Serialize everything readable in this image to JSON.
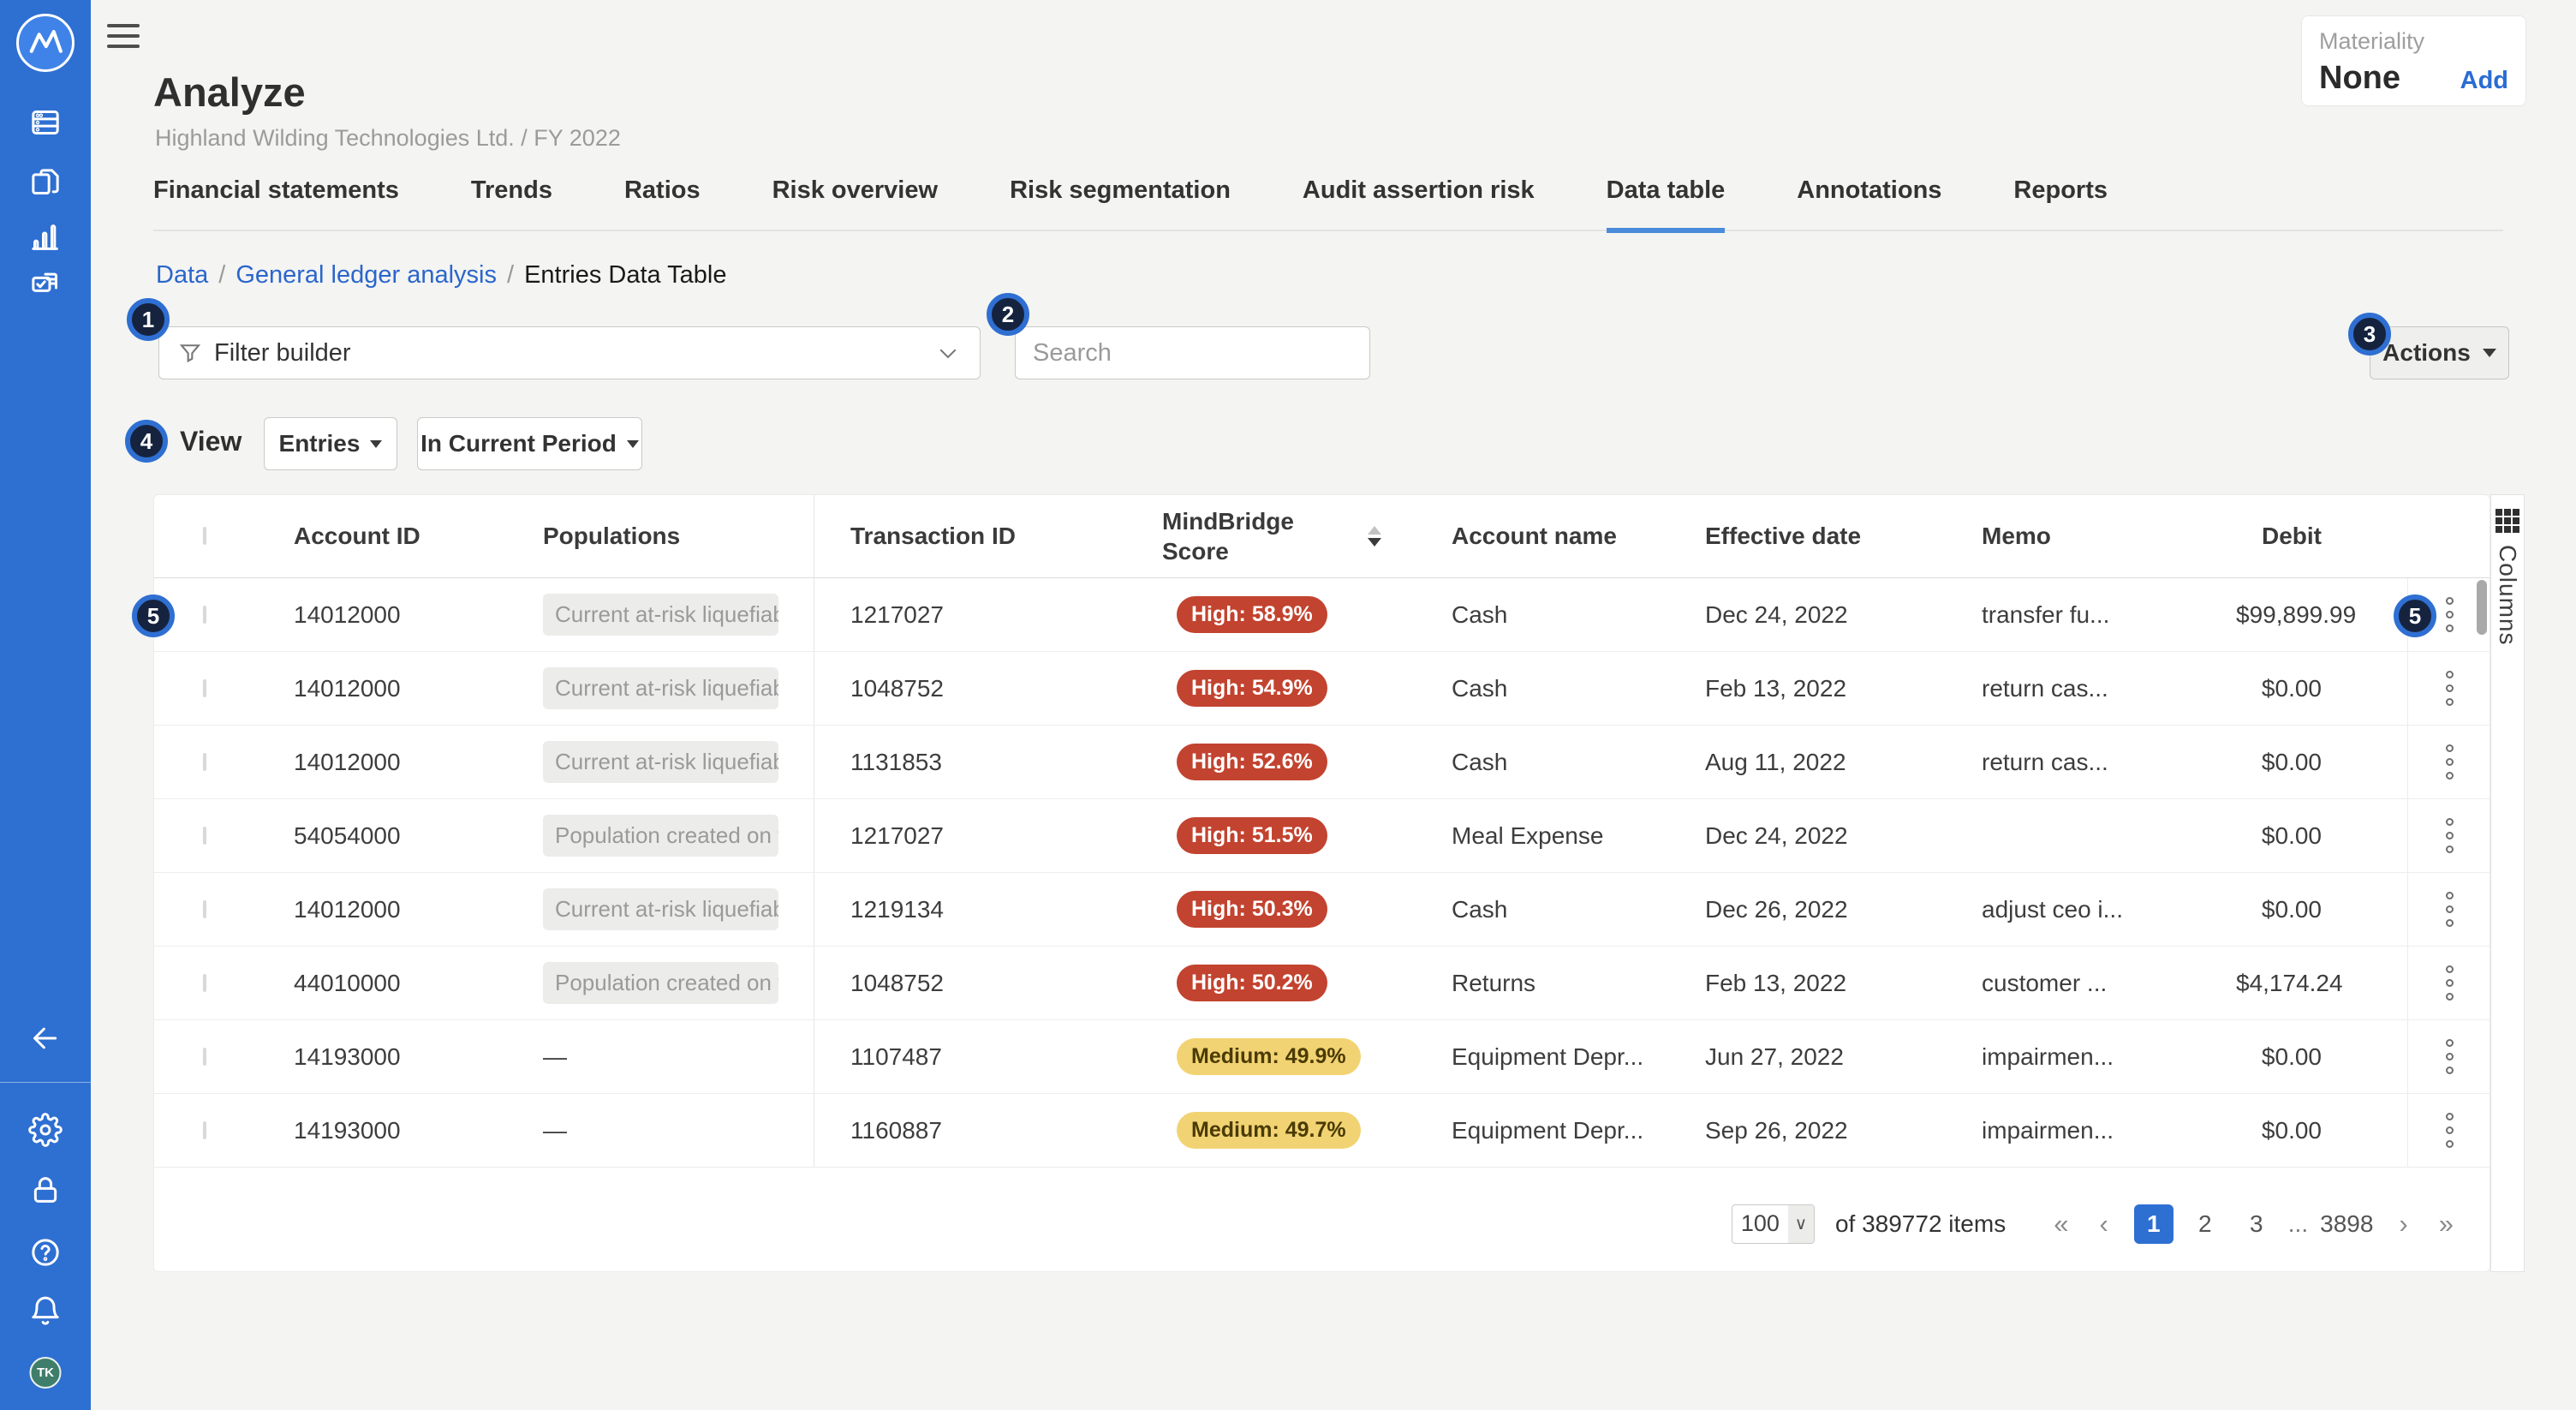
{
  "colors": {
    "brand_blue": "#2e6fd2",
    "high_risk": "#c2432f",
    "medium_risk": "#f2d373",
    "badge_navy": "#16233f",
    "link_blue": "#2a66cc",
    "active_tab_underline": "#4a8bdb",
    "avatar_green": "#3f7e6a"
  },
  "sidebar": {
    "logo_icon": "mindbridge-logo",
    "nav_icons": [
      "data-library-icon",
      "engagements-icon",
      "analytics-icon",
      "tasks-icon"
    ],
    "bottom_icons": [
      "collapse-arrow-icon",
      "settings-gear-icon",
      "admin-lock-icon",
      "help-icon",
      "notifications-bell-icon"
    ],
    "avatar_initials": "TK"
  },
  "header": {
    "menu_icon": "hamburger-icon",
    "title": "Analyze",
    "subtitle": "Highland Wilding Technologies Ltd. / FY 2022"
  },
  "materiality": {
    "label": "Materiality",
    "value": "None",
    "add_label": "Add"
  },
  "tabs": [
    {
      "label": "Financial statements",
      "active": false
    },
    {
      "label": "Trends",
      "active": false
    },
    {
      "label": "Ratios",
      "active": false
    },
    {
      "label": "Risk overview",
      "active": false
    },
    {
      "label": "Risk segmentation",
      "active": false
    },
    {
      "label": "Audit assertion risk",
      "active": false
    },
    {
      "label": "Data table",
      "active": true
    },
    {
      "label": "Annotations",
      "active": false
    },
    {
      "label": "Reports",
      "active": false
    }
  ],
  "breadcrumb": {
    "separator": "/",
    "items": [
      {
        "label": "Data",
        "link": true
      },
      {
        "label": "General ledger analysis",
        "link": true
      },
      {
        "label": "Entries Data Table",
        "link": false
      }
    ]
  },
  "toolbar": {
    "filter_builder_label": "Filter builder",
    "filter_icon": "funnel-icon",
    "search_placeholder": "Search",
    "search_icon": "magnifier-icon",
    "actions_label": "Actions"
  },
  "view_bar": {
    "label": "View",
    "entries_label": "Entries",
    "period_label": "In Current Period"
  },
  "annotation_badges": [
    "1",
    "2",
    "3",
    "4",
    "5",
    "5"
  ],
  "table": {
    "columns": [
      "Account ID",
      "Populations",
      "Transaction ID",
      "MindBridge Score",
      "Account name",
      "Effective date",
      "Memo",
      "Debit"
    ],
    "sort": {
      "column": "MindBridge Score",
      "direction": "desc"
    },
    "rows": [
      {
        "account_id": "14012000",
        "population": {
          "text": "Current at-risk liquefiable As",
          "chip": true
        },
        "transaction_id": "1217027",
        "score": {
          "label": "High: 58.9%",
          "level": "high"
        },
        "account_name": "Cash",
        "effective_date": "Dec 24, 2022",
        "memo": "transfer fu...",
        "debit": "$99,899.99"
      },
      {
        "account_id": "14012000",
        "population": {
          "text": "Current at-risk liquefiable As",
          "chip": true
        },
        "transaction_id": "1048752",
        "score": {
          "label": "High: 54.9%",
          "level": "high"
        },
        "account_name": "Cash",
        "effective_date": "Feb 13, 2022",
        "memo": "return cas...",
        "debit": "$0.00"
      },
      {
        "account_id": "14012000",
        "population": {
          "text": "Current at-risk liquefiable As",
          "chip": true
        },
        "transaction_id": "1131853",
        "score": {
          "label": "High: 52.6%",
          "level": "high"
        },
        "account_name": "Cash",
        "effective_date": "Aug 11, 2022",
        "memo": "return cas...",
        "debit": "$0.00"
      },
      {
        "account_id": "54054000",
        "population": {
          "text": "Population created on the D",
          "chip": true
        },
        "transaction_id": "1217027",
        "score": {
          "label": "High: 51.5%",
          "level": "high"
        },
        "account_name": "Meal Expense",
        "effective_date": "Dec 24, 2022",
        "memo": "",
        "debit": "$0.00"
      },
      {
        "account_id": "14012000",
        "population": {
          "text": "Current at-risk liquefiable As",
          "chip": true
        },
        "transaction_id": "1219134",
        "score": {
          "label": "High: 50.3%",
          "level": "high"
        },
        "account_name": "Cash",
        "effective_date": "Dec 26, 2022",
        "memo": "adjust ceo i...",
        "debit": "$0.00"
      },
      {
        "account_id": "44010000",
        "population": {
          "text": "Population created on the D",
          "chip": true
        },
        "transaction_id": "1048752",
        "score": {
          "label": "High: 50.2%",
          "level": "high"
        },
        "account_name": "Returns",
        "effective_date": "Feb 13, 2022",
        "memo": "customer ...",
        "debit": "$4,174.24"
      },
      {
        "account_id": "14193000",
        "population": {
          "text": "—",
          "chip": false
        },
        "transaction_id": "1107487",
        "score": {
          "label": "Medium: 49.9%",
          "level": "medium"
        },
        "account_name": "Equipment Depr...",
        "effective_date": "Jun 27, 2022",
        "memo": "impairmen...",
        "debit": "$0.00"
      },
      {
        "account_id": "14193000",
        "population": {
          "text": "—",
          "chip": false
        },
        "transaction_id": "1160887",
        "score": {
          "label": "Medium: 49.7%",
          "level": "medium"
        },
        "account_name": "Equipment Depr...",
        "effective_date": "Sep 26, 2022",
        "memo": "impairmen...",
        "debit": "$0.00"
      }
    ]
  },
  "columns_panel": {
    "label": "Columns",
    "icon": "grid-icon"
  },
  "pagination": {
    "page_size": "100",
    "items_text": "of 389772 items",
    "pages": [
      "1",
      "2",
      "3",
      "...",
      "3898"
    ],
    "active_page": "1",
    "nav": {
      "first": "«",
      "prev": "‹",
      "next": "›",
      "last": "»"
    }
  }
}
